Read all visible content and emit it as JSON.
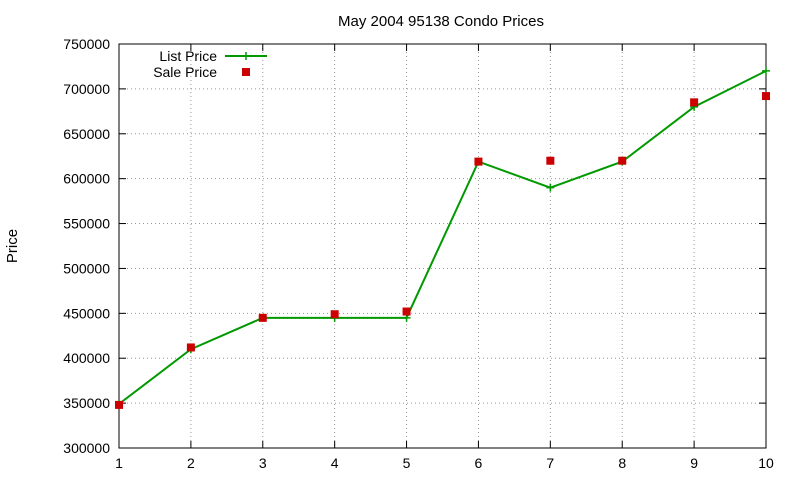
{
  "chart_data": {
    "type": "line",
    "title": "May 2004 95138 Condo Prices",
    "xlabel": "",
    "ylabel": "Price",
    "x": [
      1,
      2,
      3,
      4,
      5,
      6,
      7,
      8,
      9,
      10
    ],
    "xlim": [
      1,
      10
    ],
    "ylim": [
      300000,
      750000
    ],
    "xticks": [
      "1",
      "2",
      "3",
      "4",
      "5",
      "6",
      "7",
      "8",
      "9",
      "10"
    ],
    "yticks": [
      "300000",
      "350000",
      "400000",
      "450000",
      "500000",
      "550000",
      "600000",
      "650000",
      "700000",
      "750000"
    ],
    "grid": true,
    "legend_position": "top-left",
    "series": [
      {
        "name": "List Price",
        "style": "line-points",
        "color": "#009900",
        "values": [
          349000,
          410000,
          445000,
          445000,
          445000,
          619000,
          590000,
          619000,
          680000,
          720000
        ]
      },
      {
        "name": "Sale Price",
        "style": "points",
        "color": "#cc0000",
        "values": [
          348000,
          412000,
          445000,
          449000,
          452000,
          619000,
          620000,
          620000,
          685000,
          692000
        ]
      }
    ]
  }
}
